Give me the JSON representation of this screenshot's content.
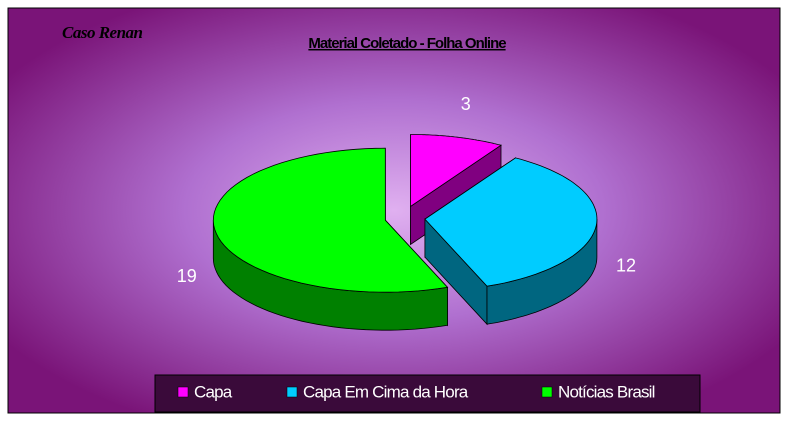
{
  "chart_data": {
    "type": "pie",
    "title": "Material Coletado - Folha Online",
    "subtitle": "Caso Renan",
    "categories": [
      "Capa",
      "Capa Em Cima da Hora",
      "Notícias Brasil"
    ],
    "values": [
      3,
      12,
      19
    ],
    "colors": [
      "#ff00ff",
      "#00ccff",
      "#00ff00"
    ],
    "legend": "bottom"
  }
}
